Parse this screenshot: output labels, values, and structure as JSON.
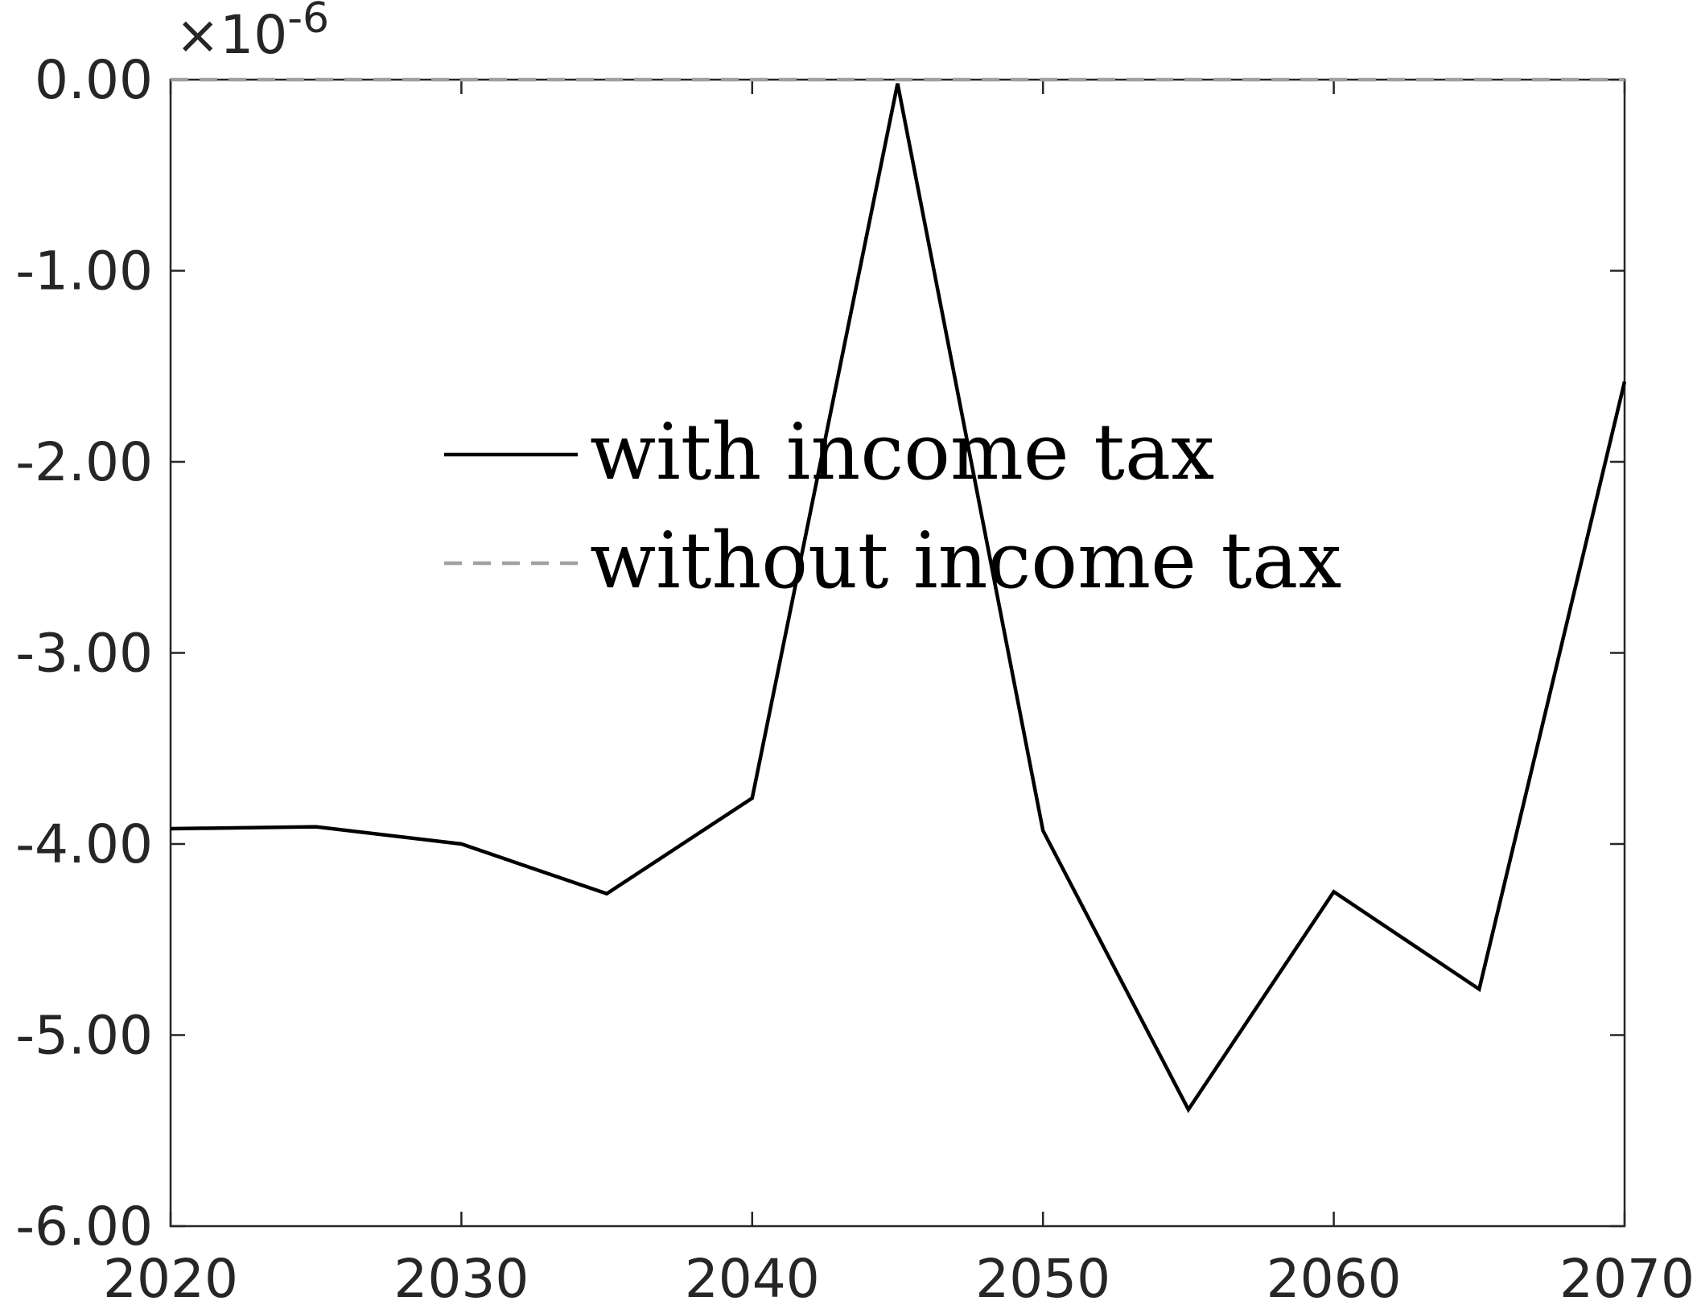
{
  "chart_data": {
    "type": "line",
    "title": "",
    "xlabel": "",
    "ylabel": "",
    "xlim": [
      2020,
      2070
    ],
    "ylim": [
      -6.0,
      0.0
    ],
    "x_ticks": [
      "2020",
      "2030",
      "2040",
      "2050",
      "2060",
      "2070"
    ],
    "y_ticks": [
      "0.00",
      "-1.00",
      "-2.00",
      "-3.00",
      "-4.00",
      "-5.00",
      "-6.00"
    ],
    "y_exponent": {
      "multiplier": "×10",
      "power": "-6"
    },
    "grid": false,
    "legend_position": "center",
    "series": [
      {
        "name": "with income tax",
        "color": "#000000",
        "style": "solid",
        "x": [
          2020,
          2025,
          2030,
          2035,
          2040,
          2045,
          2050,
          2055,
          2060,
          2065,
          2070
        ],
        "y": [
          -3.92,
          -3.91,
          -4.0,
          -4.26,
          -3.76,
          -0.02,
          -3.93,
          -5.39,
          -4.25,
          -4.76,
          -1.58
        ]
      },
      {
        "name": "without income tax",
        "color": "#a0a0a0",
        "style": "dashed",
        "x": [
          2020,
          2070
        ],
        "y": [
          0.0,
          0.0
        ]
      }
    ]
  }
}
